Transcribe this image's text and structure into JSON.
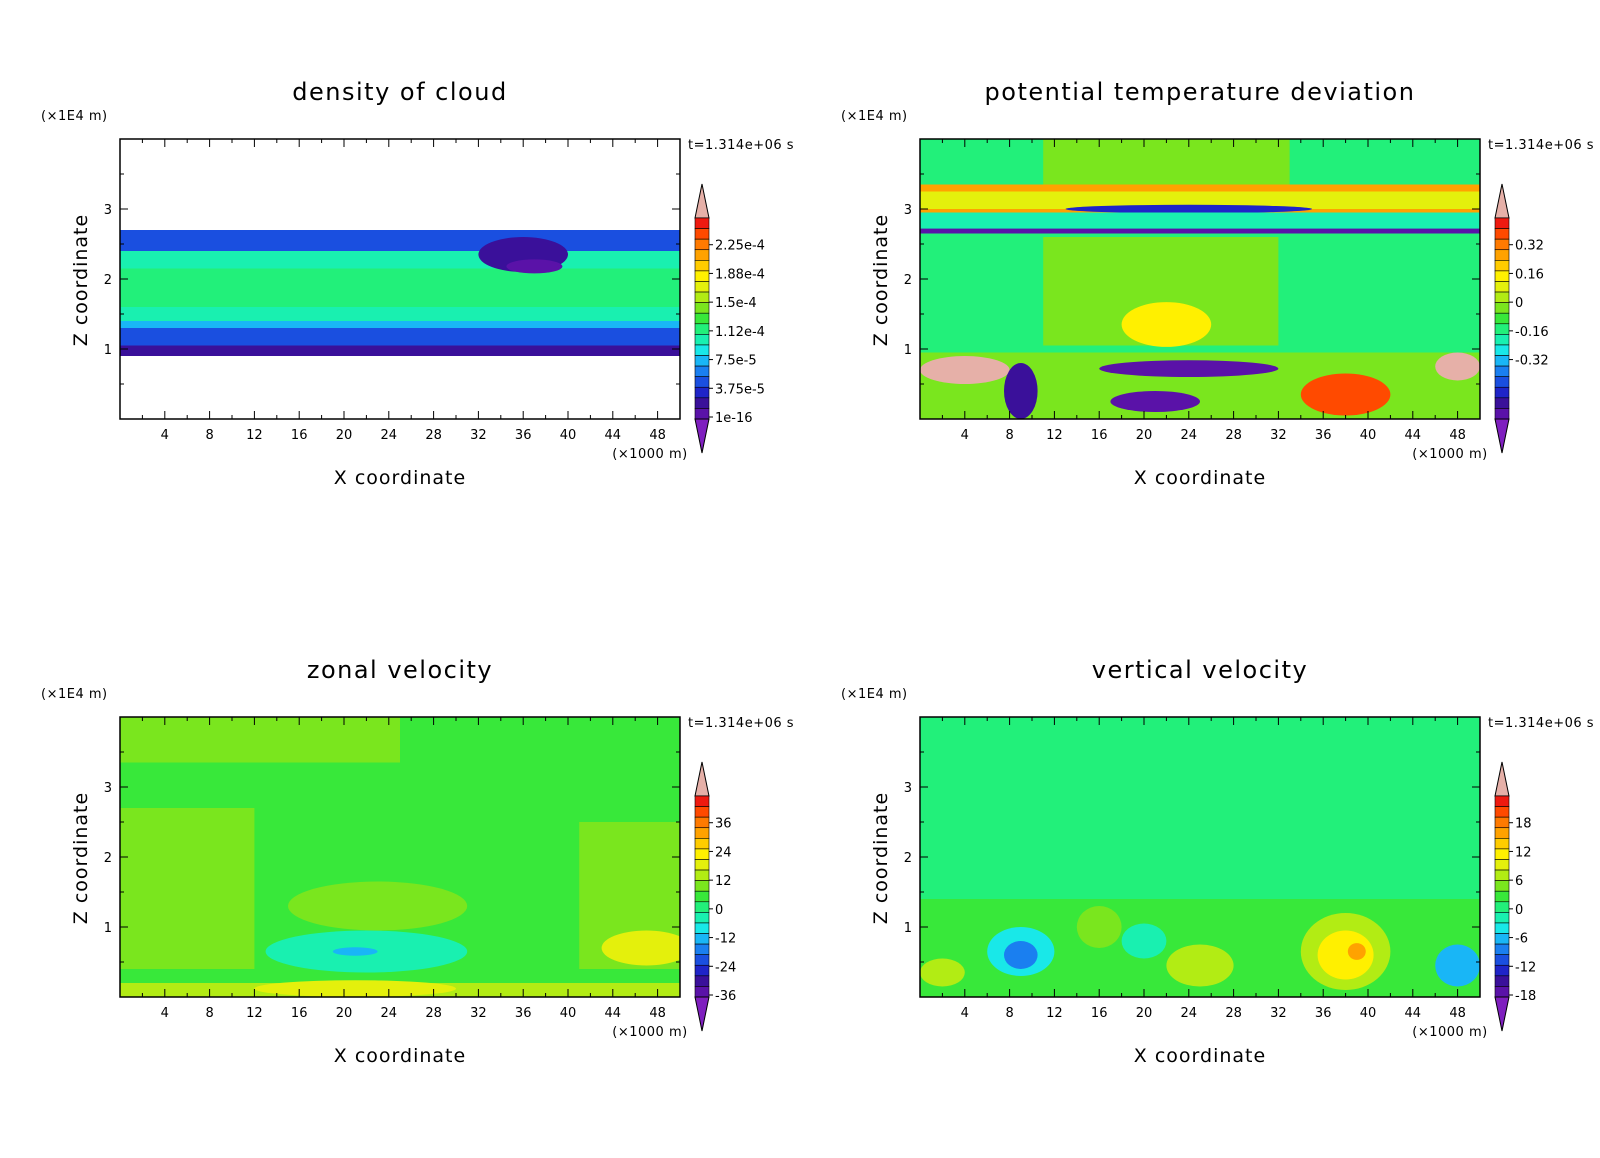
{
  "colormap": [
    "#7f1fbf",
    "#5a12a8",
    "#3a109a",
    "#1f24c8",
    "#1a4fe0",
    "#1a7ff0",
    "#19b6f6",
    "#19e8e8",
    "#19f0b0",
    "#22f07a",
    "#38e83a",
    "#7ae61e",
    "#b2ec14",
    "#e4f00c",
    "#fff000",
    "#ffcc00",
    "#ffa200",
    "#ff7a00",
    "#ff4a00",
    "#ee1a10",
    "#e6b0a8"
  ],
  "panels": [
    {
      "title": "density of cloud",
      "zunit": "(×1E4 m)",
      "time": "t=1.314e+06 s",
      "xunit": "(×1000 m)",
      "xlabel": "X coordinate",
      "ylabel": "Z coordinate",
      "colorbar_labels": [
        "2.25e-4",
        "1.88e-4",
        "1.5e-4",
        "1.12e-4",
        "7.5e-5",
        "3.75e-5",
        "1e-16"
      ]
    },
    {
      "title": "potential temperature deviation",
      "zunit": "(×1E4 m)",
      "time": "t=1.314e+06 s",
      "xunit": "(×1000 m)",
      "xlabel": "X coordinate",
      "ylabel": "Z coordinate",
      "colorbar_labels": [
        "0.32",
        "0.16",
        "0",
        "-0.16",
        "-0.32"
      ]
    },
    {
      "title": "zonal velocity",
      "zunit": "(×1E4 m)",
      "time": "t=1.314e+06 s",
      "xunit": "(×1000 m)",
      "xlabel": "X coordinate",
      "ylabel": "Z coordinate",
      "colorbar_labels": [
        "36",
        "24",
        "12",
        "0",
        "-12",
        "-24",
        "-36"
      ]
    },
    {
      "title": "vertical velocity",
      "zunit": "(×1E4 m)",
      "time": "t=1.314e+06 s",
      "xunit": "(×1000 m)",
      "xlabel": "X coordinate",
      "ylabel": "Z coordinate",
      "colorbar_labels": [
        "18",
        "12",
        "6",
        "0",
        "-6",
        "-12",
        "-18"
      ]
    }
  ],
  "chart_data": [
    {
      "type": "heatmap",
      "title": "density of cloud",
      "xlabel": "X coordinate",
      "ylabel": "Z coordinate",
      "xlim": [
        0,
        50
      ],
      "ylim": [
        0,
        4
      ],
      "x_ticks": [
        4,
        8,
        12,
        16,
        20,
        24,
        28,
        32,
        36,
        40,
        44,
        48
      ],
      "y_ticks": [
        1,
        2,
        3
      ],
      "colorbar": [
        "2.25e-4",
        "1.88e-4",
        "1.5e-4",
        "1.12e-4",
        "7.5e-5",
        "3.75e-5",
        "1e-16"
      ],
      "regions": [
        {
          "shape": "rect",
          "x": [
            0,
            50
          ],
          "z": [
            0.9,
            2.7
          ],
          "level": 6
        },
        {
          "shape": "rect",
          "x": [
            0,
            50
          ],
          "z": [
            1.4,
            2.4
          ],
          "level": 8
        },
        {
          "shape": "rect",
          "x": [
            0,
            50
          ],
          "z": [
            1.6,
            2.15
          ],
          "level": 9
        },
        {
          "shape": "rect",
          "x": [
            0,
            50
          ],
          "z": [
            2.4,
            2.7
          ],
          "level": 4
        },
        {
          "shape": "rect",
          "x": [
            0,
            50
          ],
          "z": [
            1.05,
            1.3
          ],
          "level": 4
        },
        {
          "shape": "rect",
          "x": [
            0,
            50
          ],
          "z": [
            0.9,
            1.05
          ],
          "level": 2
        },
        {
          "shape": "ellipse",
          "cx": 36,
          "cz": 2.35,
          "rx": 4,
          "rz": 0.25,
          "level": 2
        },
        {
          "shape": "ellipse",
          "cx": 37,
          "cz": 2.18,
          "rx": 2.5,
          "rz": 0.1,
          "level": 1
        }
      ]
    },
    {
      "type": "heatmap",
      "title": "potential temperature deviation",
      "xlabel": "X coordinate",
      "ylabel": "Z coordinate",
      "xlim": [
        0,
        50
      ],
      "ylim": [
        0,
        4
      ],
      "x_ticks": [
        4,
        8,
        12,
        16,
        20,
        24,
        28,
        32,
        36,
        40,
        44,
        48
      ],
      "y_ticks": [
        1,
        2,
        3
      ],
      "colorbar": [
        "0.32",
        "0.16",
        "0",
        "-0.16",
        "-0.32"
      ],
      "regions": [
        {
          "shape": "rect",
          "x": [
            0,
            50
          ],
          "z": [
            0,
            4
          ],
          "level": 9
        },
        {
          "shape": "rect",
          "x": [
            11,
            33
          ],
          "z": [
            3.35,
            4
          ],
          "level": 11
        },
        {
          "shape": "rect",
          "x": [
            11,
            32
          ],
          "z": [
            1.05,
            2.6
          ],
          "level": 11
        },
        {
          "shape": "ellipse",
          "cx": 22,
          "cz": 1.35,
          "rx": 4,
          "rz": 0.32,
          "level": 14
        },
        {
          "shape": "rect",
          "x": [
            0,
            50
          ],
          "z": [
            2.95,
            3.35
          ],
          "level": 16
        },
        {
          "shape": "rect",
          "x": [
            0,
            50
          ],
          "z": [
            3.0,
            3.25
          ],
          "level": 13
        },
        {
          "shape": "ellipse",
          "cx": 24,
          "cz": 3.0,
          "rx": 11,
          "rz": 0.06,
          "level": 3
        },
        {
          "shape": "rect",
          "x": [
            0,
            50
          ],
          "z": [
            2.65,
            2.95
          ],
          "level": 8
        },
        {
          "shape": "rect",
          "x": [
            0,
            50
          ],
          "z": [
            2.65,
            2.72
          ],
          "level": 1
        },
        {
          "shape": "rect",
          "x": [
            0,
            50
          ],
          "z": [
            0,
            0.95
          ],
          "level": 11
        },
        {
          "shape": "ellipse",
          "cx": 24,
          "cz": 0.72,
          "rx": 8,
          "rz": 0.12,
          "level": 1
        },
        {
          "shape": "ellipse",
          "cx": 21,
          "cz": 0.25,
          "rx": 4,
          "rz": 0.15,
          "level": 1
        },
        {
          "shape": "ellipse",
          "cx": 38,
          "cz": 0.35,
          "rx": 4,
          "rz": 0.3,
          "level": 18
        },
        {
          "shape": "ellipse",
          "cx": 4,
          "cz": 0.7,
          "rx": 4,
          "rz": 0.2,
          "level": 20
        },
        {
          "shape": "ellipse",
          "cx": 48,
          "cz": 0.75,
          "rx": 2,
          "rz": 0.2,
          "level": 20
        },
        {
          "shape": "ellipse",
          "cx": 9,
          "cz": 0.4,
          "rx": 1.5,
          "rz": 0.4,
          "level": 2
        }
      ]
    },
    {
      "type": "heatmap",
      "title": "zonal velocity",
      "xlabel": "X coordinate",
      "ylabel": "Z coordinate",
      "xlim": [
        0,
        50
      ],
      "ylim": [
        0,
        4
      ],
      "x_ticks": [
        4,
        8,
        12,
        16,
        20,
        24,
        28,
        32,
        36,
        40,
        44,
        48
      ],
      "y_ticks": [
        1,
        2,
        3
      ],
      "colorbar": [
        "36",
        "24",
        "12",
        "0",
        "-12",
        "-24",
        "-36"
      ],
      "regions": [
        {
          "shape": "rect",
          "x": [
            0,
            50
          ],
          "z": [
            0,
            4
          ],
          "level": 10
        },
        {
          "shape": "rect",
          "x": [
            0,
            25
          ],
          "z": [
            3.35,
            4
          ],
          "level": 11
        },
        {
          "shape": "rect",
          "x": [
            0,
            12
          ],
          "z": [
            0.4,
            2.7
          ],
          "level": 11
        },
        {
          "shape": "rect",
          "x": [
            41,
            50
          ],
          "z": [
            0.4,
            2.5
          ],
          "level": 11
        },
        {
          "shape": "ellipse",
          "cx": 23,
          "cz": 1.3,
          "rx": 8,
          "rz": 0.35,
          "level": 11
        },
        {
          "shape": "ellipse",
          "cx": 22,
          "cz": 0.65,
          "rx": 9,
          "rz": 0.3,
          "level": 8
        },
        {
          "shape": "ellipse",
          "cx": 21,
          "cz": 0.65,
          "rx": 2,
          "rz": 0.06,
          "level": 6
        },
        {
          "shape": "rect",
          "x": [
            0,
            50
          ],
          "z": [
            0,
            0.2
          ],
          "level": 12
        },
        {
          "shape": "ellipse",
          "cx": 21,
          "cz": 0.12,
          "rx": 9,
          "rz": 0.12,
          "level": 13
        },
        {
          "shape": "ellipse",
          "cx": 47,
          "cz": 0.7,
          "rx": 4,
          "rz": 0.25,
          "level": 13
        }
      ]
    },
    {
      "type": "heatmap",
      "title": "vertical velocity",
      "xlabel": "X coordinate",
      "ylabel": "Z coordinate",
      "xlim": [
        0,
        50
      ],
      "ylim": [
        0,
        4
      ],
      "x_ticks": [
        4,
        8,
        12,
        16,
        20,
        24,
        28,
        32,
        36,
        40,
        44,
        48
      ],
      "y_ticks": [
        1,
        2,
        3
      ],
      "colorbar": [
        "18",
        "12",
        "6",
        "0",
        "-6",
        "-12",
        "-18"
      ],
      "regions": [
        {
          "shape": "rect",
          "x": [
            0,
            50
          ],
          "z": [
            0,
            4
          ],
          "level": 9
        },
        {
          "shape": "rect",
          "x": [
            0,
            50
          ],
          "z": [
            0,
            1.4
          ],
          "level": 10
        },
        {
          "shape": "ellipse",
          "cx": 9,
          "cz": 0.65,
          "rx": 3,
          "rz": 0.35,
          "level": 7
        },
        {
          "shape": "ellipse",
          "cx": 9,
          "cz": 0.6,
          "rx": 1.5,
          "rz": 0.2,
          "level": 5
        },
        {
          "shape": "ellipse",
          "cx": 16,
          "cz": 1.0,
          "rx": 2,
          "rz": 0.3,
          "level": 11
        },
        {
          "shape": "ellipse",
          "cx": 20,
          "cz": 0.8,
          "rx": 2,
          "rz": 0.25,
          "level": 8
        },
        {
          "shape": "ellipse",
          "cx": 25,
          "cz": 0.45,
          "rx": 3,
          "rz": 0.3,
          "level": 12
        },
        {
          "shape": "ellipse",
          "cx": 38,
          "cz": 0.65,
          "rx": 4,
          "rz": 0.55,
          "level": 12
        },
        {
          "shape": "ellipse",
          "cx": 38,
          "cz": 0.6,
          "rx": 2.5,
          "rz": 0.35,
          "level": 14
        },
        {
          "shape": "ellipse",
          "cx": 39,
          "cz": 0.65,
          "rx": 0.8,
          "rz": 0.12,
          "level": 16
        },
        {
          "shape": "ellipse",
          "cx": 48,
          "cz": 0.45,
          "rx": 2,
          "rz": 0.3,
          "level": 6
        },
        {
          "shape": "ellipse",
          "cx": 2,
          "cz": 0.35,
          "rx": 2,
          "rz": 0.2,
          "level": 12
        }
      ]
    }
  ]
}
